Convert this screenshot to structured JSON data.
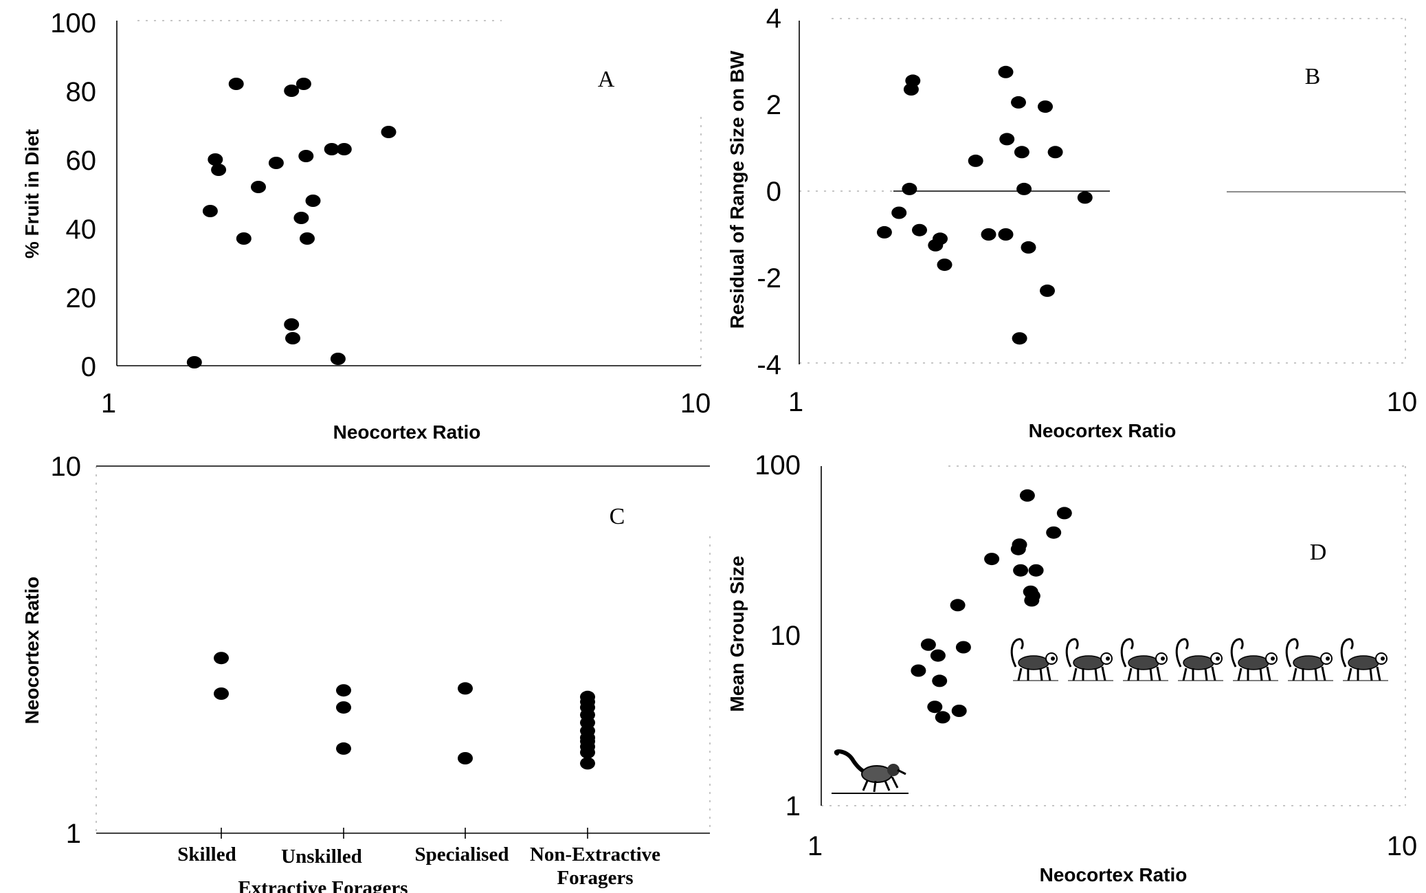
{
  "chart_data": [
    {
      "type": "scatter",
      "panel_label": "A",
      "xlabel": "Neocortex Ratio",
      "ylabel": "% Fruit in Diet",
      "x_scale": "log",
      "xlim": [
        1,
        10
      ],
      "ylim": [
        0,
        100
      ],
      "x_ticks": [
        "1",
        "10"
      ],
      "y_ticks": [
        "0",
        "20",
        "40",
        "60",
        "80",
        "100"
      ],
      "points": [
        {
          "x": 1.4,
          "y": 1
        },
        {
          "x": 1.49,
          "y": 45
        },
        {
          "x": 1.52,
          "y": 60
        },
        {
          "x": 1.54,
          "y": 57
        },
        {
          "x": 1.65,
          "y": 82
        },
        {
          "x": 1.7,
          "y": 37
        },
        {
          "x": 1.8,
          "y": 52
        },
        {
          "x": 1.93,
          "y": 59
        },
        {
          "x": 2.05,
          "y": 80
        },
        {
          "x": 2.05,
          "y": 12
        },
        {
          "x": 2.06,
          "y": 8
        },
        {
          "x": 2.15,
          "y": 82
        },
        {
          "x": 2.13,
          "y": 43
        },
        {
          "x": 2.17,
          "y": 61
        },
        {
          "x": 2.18,
          "y": 37
        },
        {
          "x": 2.23,
          "y": 48
        },
        {
          "x": 2.4,
          "y": 63
        },
        {
          "x": 2.46,
          "y": 2
        },
        {
          "x": 2.52,
          "y": 63
        },
        {
          "x": 3.0,
          "y": 68
        }
      ]
    },
    {
      "type": "scatter",
      "panel_label": "B",
      "xlabel": "Neocortex Ratio",
      "ylabel": "Residual of Range Size on BW",
      "x_scale": "log",
      "xlim": [
        1,
        10
      ],
      "ylim": [
        -4,
        4
      ],
      "x_ticks": [
        "1",
        "10"
      ],
      "y_ticks": [
        "-4",
        "-2",
        "0",
        "2",
        "4"
      ],
      "points": [
        {
          "x": 1.4,
          "y": -0.95
        },
        {
          "x": 1.48,
          "y": -0.5
        },
        {
          "x": 1.54,
          "y": 0.05
        },
        {
          "x": 1.55,
          "y": 2.35
        },
        {
          "x": 1.56,
          "y": 2.55
        },
        {
          "x": 1.6,
          "y": -0.9
        },
        {
          "x": 1.7,
          "y": -1.25
        },
        {
          "x": 1.73,
          "y": -1.1
        },
        {
          "x": 1.76,
          "y": -1.7
        },
        {
          "x": 1.98,
          "y": 0.7
        },
        {
          "x": 2.08,
          "y": -1.0
        },
        {
          "x": 2.22,
          "y": 2.75
        },
        {
          "x": 2.23,
          "y": 1.2
        },
        {
          "x": 2.22,
          "y": -1.0
        },
        {
          "x": 2.33,
          "y": 2.05
        },
        {
          "x": 2.36,
          "y": 0.9
        },
        {
          "x": 2.38,
          "y": 0.05
        },
        {
          "x": 2.34,
          "y": -3.4
        },
        {
          "x": 2.42,
          "y": -1.3
        },
        {
          "x": 2.58,
          "y": 1.95
        },
        {
          "x": 2.6,
          "y": -2.3
        },
        {
          "x": 2.68,
          "y": 0.9
        },
        {
          "x": 3.0,
          "y": -0.15
        }
      ]
    },
    {
      "type": "scatter",
      "panel_label": "C",
      "ylabel": "Neocortex Ratio",
      "y_scale": "log",
      "ylim": [
        1,
        10
      ],
      "y_ticks": [
        "1",
        "10"
      ],
      "categories": [
        "Skilled",
        "Unskilled",
        "Specialised",
        "Non-Extractive\nForagers"
      ],
      "category_group_label": "Extractive Foragers",
      "points": [
        {
          "category": "Skilled",
          "y": 3.0
        },
        {
          "category": "Skilled",
          "y": 2.4
        },
        {
          "category": "Unskilled",
          "y": 2.45
        },
        {
          "category": "Unskilled",
          "y": 2.2
        },
        {
          "category": "Unskilled",
          "y": 1.7
        },
        {
          "category": "Specialised",
          "y": 2.48
        },
        {
          "category": "Specialised",
          "y": 1.6
        },
        {
          "category": "Non-Extractive\nForagers",
          "y": 2.35
        },
        {
          "category": "Non-Extractive\nForagers",
          "y": 2.28
        },
        {
          "category": "Non-Extractive\nForagers",
          "y": 2.2
        },
        {
          "category": "Non-Extractive\nForagers",
          "y": 2.1
        },
        {
          "category": "Non-Extractive\nForagers",
          "y": 2.0
        },
        {
          "category": "Non-Extractive\nForagers",
          "y": 1.9
        },
        {
          "category": "Non-Extractive\nForagers",
          "y": 1.82
        },
        {
          "category": "Non-Extractive\nForagers",
          "y": 1.78
        },
        {
          "category": "Non-Extractive\nForagers",
          "y": 1.72
        },
        {
          "category": "Non-Extractive\nForagers",
          "y": 1.66
        },
        {
          "category": "Non-Extractive\nForagers",
          "y": 1.55
        }
      ]
    },
    {
      "type": "scatter",
      "panel_label": "D",
      "xlabel": "Neocortex Ratio",
      "ylabel": "Mean Group Size",
      "x_scale": "log",
      "y_scale": "log",
      "xlim": [
        1,
        10
      ],
      "ylim": [
        1,
        100
      ],
      "x_ticks": [
        "1",
        "10"
      ],
      "y_ticks": [
        "1",
        "10",
        "100"
      ],
      "points": [
        {
          "x": 1.5,
          "y": 6.2
        },
        {
          "x": 1.56,
          "y": 8.8
        },
        {
          "x": 1.6,
          "y": 3.8
        },
        {
          "x": 1.62,
          "y": 7.6
        },
        {
          "x": 1.63,
          "y": 5.4
        },
        {
          "x": 1.65,
          "y": 3.3
        },
        {
          "x": 1.75,
          "y": 15
        },
        {
          "x": 1.76,
          "y": 3.6
        },
        {
          "x": 1.79,
          "y": 8.5
        },
        {
          "x": 2.0,
          "y": 28
        },
        {
          "x": 2.23,
          "y": 34
        },
        {
          "x": 2.22,
          "y": 32
        },
        {
          "x": 2.24,
          "y": 24
        },
        {
          "x": 2.3,
          "y": 66
        },
        {
          "x": 2.33,
          "y": 18
        },
        {
          "x": 2.34,
          "y": 16
        },
        {
          "x": 2.35,
          "y": 17
        },
        {
          "x": 2.38,
          "y": 24
        },
        {
          "x": 2.55,
          "y": 40
        },
        {
          "x": 2.66,
          "y": 52
        }
      ],
      "illustrations": [
        "lemur-icon",
        "monkey-icon"
      ]
    }
  ]
}
